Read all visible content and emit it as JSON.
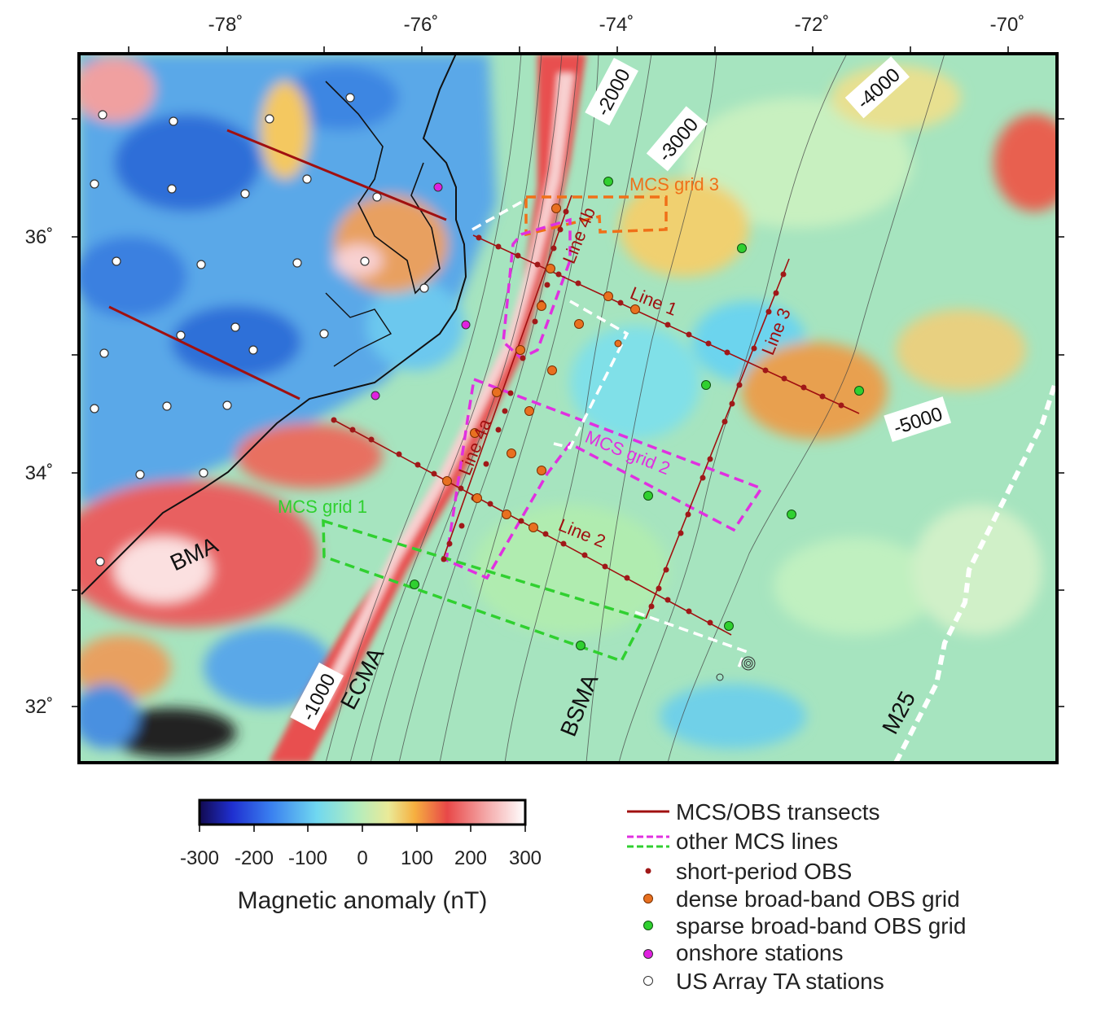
{
  "map": {
    "lon_labels": [
      "-78˚",
      "-76˚",
      "-74˚",
      "-72˚",
      "-70˚"
    ],
    "lat_labels": [
      "36˚",
      "34˚",
      "32˚"
    ],
    "contours": [
      "-1000",
      "-2000",
      "-3000",
      "-4000",
      "-5000"
    ],
    "anomaly_labels": [
      "BMA",
      "ECMA",
      "BSMA",
      "M25"
    ],
    "line_labels": [
      "Line 1",
      "Line 2",
      "Line 3",
      "Line 4a",
      "Line 4b"
    ],
    "grid_labels": [
      "MCS grid 1",
      "MCS grid 2",
      "MCS grid 3"
    ],
    "extent": {
      "lon_min": -79.5,
      "lon_max": -69.5,
      "lat_min": 31.5,
      "lat_max": 37.5
    }
  },
  "colorbar": {
    "title": "Magnetic anomaly (nT)",
    "tick_labels": [
      "-300",
      "-200",
      "-100",
      "0",
      "100",
      "200",
      "300"
    ],
    "colors": [
      "#1a1060",
      "#1f2fd0",
      "#3a7ff0",
      "#6cd0f0",
      "#a8e8c8",
      "#e8e8a0",
      "#f0a040",
      "#e85050",
      "#f0a0a0",
      "#ffffff"
    ]
  },
  "legend": {
    "items": [
      {
        "label": "MCS/OBS transects",
        "color": "#a01010"
      },
      {
        "label": "other MCS lines",
        "color": "#e030e0",
        "color2": "#30d030"
      },
      {
        "label": "short-period OBS",
        "color": "#a01818"
      },
      {
        "label": "dense broad-band OBS grid",
        "color": "#e87020"
      },
      {
        "label": "sparse broad-band OBS grid",
        "color": "#30d030"
      },
      {
        "label": "onshore stations",
        "color": "#e020e0"
      },
      {
        "label": "US Array TA stations",
        "color": "#ffffff"
      }
    ]
  }
}
